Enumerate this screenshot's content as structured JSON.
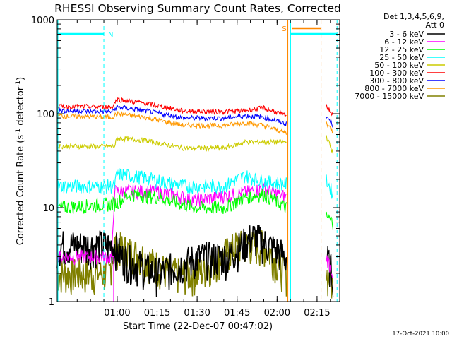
{
  "chart_data": {
    "type": "line",
    "title": "RHESSI Observing Summary Count Rates, Corrected",
    "xlabel": "Start Time (22-Dec-07 00:47:02)",
    "ylabel": "Corrected Count Rate (s⁻¹ detector⁻¹)",
    "ylabel_parts": {
      "main": "Corrected Count Rate (s",
      "sup1": "-1",
      "mid": " detector",
      "sup2": "-1",
      "close": ")"
    },
    "yscale": "log",
    "xlim_min": [
      -7.5,
      98.5
    ],
    "ylim": [
      1,
      1000
    ],
    "x_ticks": [
      {
        "min": 15,
        "label": "01:00"
      },
      {
        "min": 30,
        "label": "01:15"
      },
      {
        "min": 45,
        "label": "01:30"
      },
      {
        "min": 60,
        "label": "01:45"
      },
      {
        "min": 75,
        "label": "02:00"
      },
      {
        "min": 90,
        "label": "02:15"
      }
    ],
    "y_ticks": [
      {
        "value": 1,
        "label": "1"
      },
      {
        "value": 10,
        "label": "10"
      },
      {
        "value": 100,
        "label": "100"
      },
      {
        "value": 1000,
        "label": "1000"
      }
    ],
    "legend_title": [
      "Det 1,3,4,5,6,9,",
      "Att 0"
    ],
    "legend_position": "right",
    "series": [
      {
        "name": "3 - 6 keV",
        "color": "#000000",
        "values": [
          [
            -7.5,
            4
          ],
          [
            14,
            4
          ],
          [
            17,
            3
          ],
          [
            30,
            2
          ],
          [
            46,
            3
          ],
          [
            56,
            3
          ],
          [
            66,
            5
          ],
          [
            72,
            4
          ],
          [
            78.5,
            3
          ]
        ],
        "values2": [
          [
            93.5,
            3
          ],
          [
            96,
            2
          ]
        ]
      },
      {
        "name": "6 - 12 keV",
        "color": "#ff00ff",
        "values": [
          [
            -7.5,
            3
          ],
          [
            13,
            3
          ],
          [
            14,
            15
          ],
          [
            30,
            15
          ],
          [
            45,
            12
          ],
          [
            60,
            14
          ],
          [
            70,
            16
          ],
          [
            78.5,
            13
          ]
        ],
        "values2": [
          [
            93.5,
            3
          ],
          [
            96,
            2
          ]
        ]
      },
      {
        "name": "12 - 25 keV",
        "color": "#00ff00",
        "values": [
          [
            -7.5,
            10
          ],
          [
            14,
            11
          ],
          [
            20,
            14
          ],
          [
            30,
            13
          ],
          [
            45,
            10
          ],
          [
            55,
            10
          ],
          [
            63,
            13
          ],
          [
            70,
            14
          ],
          [
            78.5,
            10
          ]
        ],
        "values2": [
          [
            93.5,
            8
          ],
          [
            96,
            7
          ]
        ]
      },
      {
        "name": "25 - 50 keV",
        "color": "#00ffff",
        "values": [
          [
            -7.5,
            17
          ],
          [
            14,
            17
          ],
          [
            15,
            23
          ],
          [
            25,
            21
          ],
          [
            40,
            17
          ],
          [
            55,
            17
          ],
          [
            63,
            22
          ],
          [
            70,
            19
          ],
          [
            78.5,
            18
          ]
        ],
        "values2": [
          [
            93.5,
            20
          ],
          [
            96,
            14
          ]
        ]
      },
      {
        "name": "50 - 100 keV",
        "color": "#cccc00",
        "values": [
          [
            -7.5,
            45
          ],
          [
            14,
            45
          ],
          [
            15,
            55
          ],
          [
            25,
            52
          ],
          [
            40,
            43
          ],
          [
            55,
            43
          ],
          [
            63,
            50
          ],
          [
            70,
            50
          ],
          [
            78.5,
            50
          ]
        ],
        "values2": [
          [
            93.5,
            58
          ],
          [
            96,
            38
          ]
        ]
      },
      {
        "name": "100 - 300 keV",
        "color": "#ff0000",
        "values": [
          [
            -7.5,
            120
          ],
          [
            13,
            118
          ],
          [
            15,
            142
          ],
          [
            25,
            130
          ],
          [
            40,
            107
          ],
          [
            55,
            105
          ],
          [
            63,
            108
          ],
          [
            70,
            115
          ],
          [
            78.5,
            95
          ]
        ],
        "values2": [
          [
            93.5,
            120
          ],
          [
            96,
            98
          ]
        ]
      },
      {
        "name": "300 - 800 keV",
        "color": "#0000ff",
        "values": [
          [
            -7.5,
            108
          ],
          [
            13,
            105
          ],
          [
            15,
            118
          ],
          [
            25,
            108
          ],
          [
            40,
            90
          ],
          [
            55,
            90
          ],
          [
            63,
            95
          ],
          [
            70,
            92
          ],
          [
            78.5,
            78
          ]
        ],
        "values2": [
          [
            93.5,
            95
          ],
          [
            96,
            75
          ]
        ]
      },
      {
        "name": "800 - 7000 keV",
        "color": "#ff9900",
        "values": [
          [
            -7.5,
            95
          ],
          [
            13,
            92
          ],
          [
            15,
            100
          ],
          [
            25,
            92
          ],
          [
            40,
            75
          ],
          [
            55,
            75
          ],
          [
            63,
            80
          ],
          [
            70,
            75
          ],
          [
            78.5,
            62
          ]
        ],
        "values2": [
          [
            93.5,
            80
          ],
          [
            96,
            64
          ]
        ]
      },
      {
        "name": "7000 - 15000 keV",
        "color": "#808000",
        "values": [
          [
            -7.5,
            2
          ],
          [
            12,
            2
          ],
          [
            14,
            4
          ],
          [
            25,
            3
          ],
          [
            35,
            2
          ],
          [
            45,
            2
          ],
          [
            60,
            4
          ],
          [
            70,
            4
          ],
          [
            78.5,
            2
          ]
        ],
        "values2": [
          [
            93.5,
            2
          ],
          [
            96,
            1.5
          ]
        ]
      }
    ],
    "annotations": {
      "spacecraft_night": [
        {
          "from_min": -7.5,
          "to_min": 10,
          "label": "N"
        },
        {
          "from_min": 80,
          "to_min": 97.5,
          "label": ""
        }
      ],
      "saa": {
        "from_min": 80.5,
        "to_min": 91.5,
        "label": "S"
      },
      "night_color": "#00ffff",
      "saa_color": "#ff8800"
    }
  },
  "footer_date": "17-Oct-2021 10:00"
}
